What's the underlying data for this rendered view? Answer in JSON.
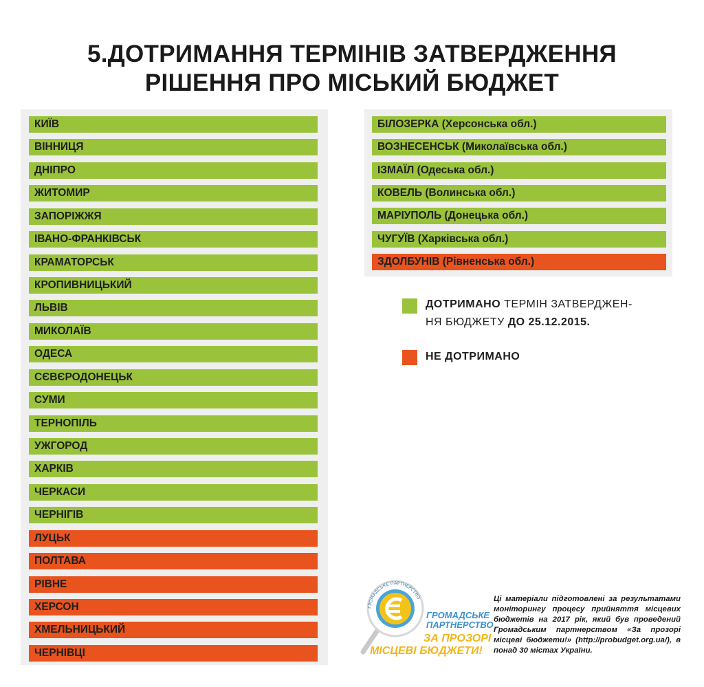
{
  "title": {
    "line1": "5.ДОТРИМАННЯ ТЕРМІНІВ ЗАТВЕРДЖЕННЯ",
    "line2": "РІШЕННЯ ПРО МІСЬКИЙ БЮДЖЕТ"
  },
  "colors": {
    "complied": "#9ac33b",
    "not_complied": "#e8531e",
    "panel": "#efefef"
  },
  "left_list": [
    {
      "name": "КИЇВ",
      "status": "complied"
    },
    {
      "name": "ВІННИЦЯ",
      "status": "complied"
    },
    {
      "name": "ДНІПРО",
      "status": "complied"
    },
    {
      "name": "ЖИТОМИР",
      "status": "complied"
    },
    {
      "name": "ЗАПОРІЖЖЯ",
      "status": "complied"
    },
    {
      "name": "ІВАНО-ФРАНКІВСЬК",
      "status": "complied"
    },
    {
      "name": "КРАМАТОРСЬК",
      "status": "complied"
    },
    {
      "name": "КРОПИВНИЦЬКИЙ",
      "status": "complied"
    },
    {
      "name": "ЛЬВІВ",
      "status": "complied"
    },
    {
      "name": "МИКОЛАЇВ",
      "status": "complied"
    },
    {
      "name": "ОДЕСА",
      "status": "complied"
    },
    {
      "name": "СЄВЄРОДОНЕЦЬК",
      "status": "complied"
    },
    {
      "name": "СУМИ",
      "status": "complied"
    },
    {
      "name": "ТЕРНОПІЛЬ",
      "status": "complied"
    },
    {
      "name": "УЖГОРОД",
      "status": "complied"
    },
    {
      "name": "ХАРКІВ",
      "status": "complied"
    },
    {
      "name": "ЧЕРКАСИ",
      "status": "complied"
    },
    {
      "name": "ЧЕРНІГІВ",
      "status": "complied"
    },
    {
      "name": "ЛУЦЬК",
      "status": "not_complied"
    },
    {
      "name": "ПОЛТАВА",
      "status": "not_complied"
    },
    {
      "name": "РІВНЕ",
      "status": "not_complied"
    },
    {
      "name": "ХЕРСОН",
      "status": "not_complied"
    },
    {
      "name": "ХМЕЛЬНИЦЬКИЙ",
      "status": "not_complied"
    },
    {
      "name": "ЧЕРНІВЦІ",
      "status": "not_complied"
    }
  ],
  "right_list": [
    {
      "name": "БІЛОЗЕРКА (Херсонська обл.)",
      "status": "complied"
    },
    {
      "name": "ВОЗНЕСЕНСЬК  (Миколаївська обл.)",
      "status": "complied"
    },
    {
      "name": "ІЗМАЇЛ (Одеська обл.)",
      "status": "complied"
    },
    {
      "name": "КОВЕЛЬ (Волинська обл.)",
      "status": "complied"
    },
    {
      "name": "МАРІУПОЛЬ (Донецька обл.)",
      "status": "complied"
    },
    {
      "name": "ЧУГУЇВ (Харківська обл.)",
      "status": "complied"
    },
    {
      "name": "ЗДОЛБУНІВ (Рівненська обл.)",
      "status": "not_complied"
    }
  ],
  "legend": {
    "complied_bold": "ДОТРИМАНО",
    "complied_text_1": " ТЕРМІН ЗАТВЕРДЖЕН-",
    "complied_text_2": "НЯ БЮДЖЕТУ ",
    "complied_date": "ДО 25.12.2015.",
    "not_complied": "НЕ ДОТРИМАНО"
  },
  "logo": {
    "ring_text": "ГРОМАДСЬКЕ ПАРТНЕРСТВО",
    "line1": "ГРОМАДСЬКЕ",
    "line2": "ПАРТНЕРСТВО",
    "line3": "ЗА ПРОЗОРІ",
    "line4": "МІСЦЕВІ БЮДЖЕТИ!"
  },
  "footnote": "Ці матеріали підготовлені за результатами моніторингу процесу прийняття місцевих бюджетів на 2017 рік, який був проведений Громадським партнерством «За прозорі місцеві бюджети!» (http://probudget.org.ua/), в понад 30 містах України."
}
